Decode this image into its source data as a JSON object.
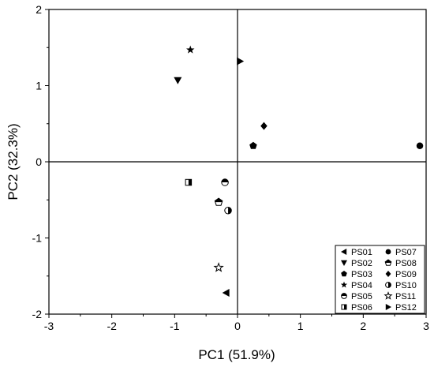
{
  "chart_data": {
    "type": "scatter",
    "xlabel": "PC1 (51.9%)",
    "ylabel": "PC2 (32.3%)",
    "xlim": [
      -3,
      3
    ],
    "ylim": [
      -2,
      2
    ],
    "x_ticks": [
      -3,
      -2,
      -1,
      0,
      1,
      2,
      3
    ],
    "y_ticks": [
      -2,
      -1,
      0,
      1,
      2
    ],
    "grid": false,
    "reference_lines": {
      "x": 0,
      "y": 0
    },
    "legend_position": "bottom-right",
    "series": [
      {
        "name": "PS01",
        "marker": "triangle-left",
        "x": -0.18,
        "y": -1.72
      },
      {
        "name": "PS02",
        "marker": "triangle-down",
        "x": -0.95,
        "y": 1.07
      },
      {
        "name": "PS03",
        "marker": "pentagon",
        "x": 0.25,
        "y": 0.21
      },
      {
        "name": "PS04",
        "marker": "star",
        "x": -0.75,
        "y": 1.47
      },
      {
        "name": "PS05",
        "marker": "circle-top-filled",
        "x": -0.2,
        "y": -0.27
      },
      {
        "name": "PS06",
        "marker": "square-half-right",
        "x": -0.78,
        "y": -0.27
      },
      {
        "name": "PS07",
        "marker": "circle",
        "x": 2.9,
        "y": 0.21
      },
      {
        "name": "PS08",
        "marker": "pentagon-half",
        "x": -0.3,
        "y": -0.53
      },
      {
        "name": "PS09",
        "marker": "diamond",
        "x": 0.42,
        "y": 0.47
      },
      {
        "name": "PS10",
        "marker": "circle-half-right",
        "x": -0.15,
        "y": -0.64
      },
      {
        "name": "PS11",
        "marker": "star-open",
        "x": -0.3,
        "y": -1.39
      },
      {
        "name": "PS12",
        "marker": "triangle-right",
        "x": 0.04,
        "y": 1.32
      }
    ]
  }
}
